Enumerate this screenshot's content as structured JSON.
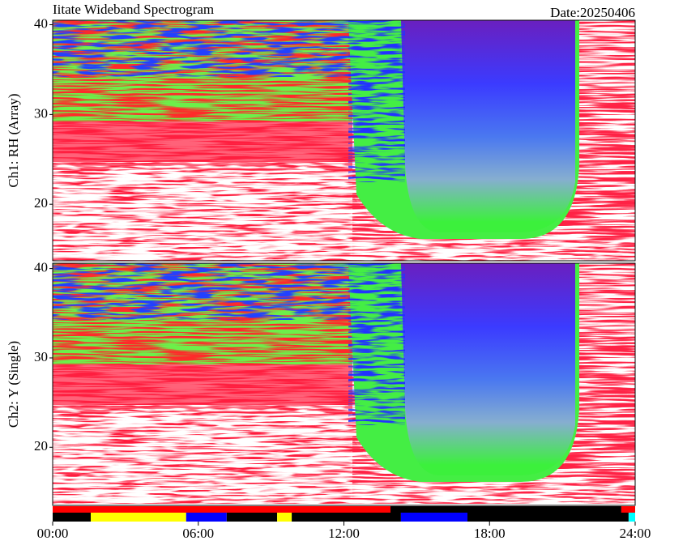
{
  "title": "Iitate Wideband Spectrogram",
  "date": "Date:20250406",
  "chart_data": [
    {
      "type": "spectrogram",
      "ylabel": "Ch1: RH (Array)",
      "xlim": [
        0,
        24
      ],
      "ylim": [
        13.7,
        40.5
      ],
      "yticks": [
        20,
        30,
        40
      ]
    },
    {
      "type": "spectrogram",
      "ylabel": "Ch2: Y (Single)",
      "xlim": [
        0,
        24
      ],
      "ylim": [
        13.5,
        40.6
      ],
      "yticks": [
        20,
        30,
        40
      ],
      "xticks": [
        {
          "value": 0,
          "label": "00:00"
        },
        {
          "value": 6,
          "label": "06:00"
        },
        {
          "value": 12,
          "label": "12:00"
        },
        {
          "value": 18,
          "label": "18:00"
        },
        {
          "value": 24,
          "label": "24:00"
        }
      ]
    }
  ],
  "status_bars": [
    {
      "segments": [
        {
          "start": 0,
          "end": 13.92,
          "color": "#ff0000"
        },
        {
          "start": 13.92,
          "end": 23.43,
          "color": "#000000"
        },
        {
          "start": 23.43,
          "end": 24,
          "color": "#ff0000"
        }
      ]
    },
    {
      "segments": [
        {
          "start": 0,
          "end": 1.57,
          "color": "#000000"
        },
        {
          "start": 1.57,
          "end": 5.5,
          "color": "#ffff00"
        },
        {
          "start": 5.5,
          "end": 7.17,
          "color": "#0000ff"
        },
        {
          "start": 7.17,
          "end": 9.25,
          "color": "#000000"
        },
        {
          "start": 9.25,
          "end": 9.85,
          "color": "#ffff00"
        },
        {
          "start": 9.85,
          "end": 14.35,
          "color": "#000000"
        },
        {
          "start": 14.35,
          "end": 17.09,
          "color": "#0000ff"
        },
        {
          "start": 17.09,
          "end": 23.73,
          "color": "#000000"
        },
        {
          "start": 23.73,
          "end": 24,
          "color": "#00ffff"
        }
      ]
    }
  ]
}
